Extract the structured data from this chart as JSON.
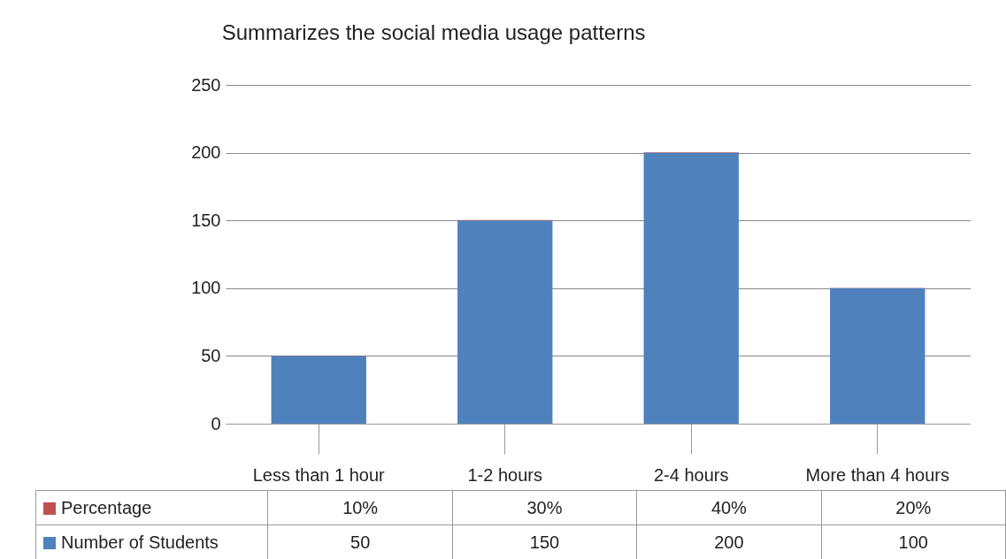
{
  "chart_data": {
    "type": "bar",
    "title": "Summarizes the social media usage patterns",
    "categories": [
      "Less than 1 hour",
      "1-2 hours",
      "2-4 hours",
      "More than 4 hours"
    ],
    "series": [
      {
        "name": "Number of Students",
        "color": "#4f81bd",
        "values": [
          50,
          150,
          200,
          100
        ],
        "value_labels": [
          "50",
          "150",
          "200",
          "100"
        ]
      },
      {
        "name": "Percentage",
        "color": "#c0504d",
        "values": [
          0.1,
          0.3,
          0.4,
          0.2
        ],
        "value_labels": [
          "10%",
          "30%",
          "40%",
          "20%"
        ]
      }
    ],
    "stacked": true,
    "ylim": [
      0,
      250
    ],
    "yticks": [
      0,
      50,
      100,
      150,
      200,
      250
    ],
    "grid": "y",
    "legend": "bottom"
  }
}
